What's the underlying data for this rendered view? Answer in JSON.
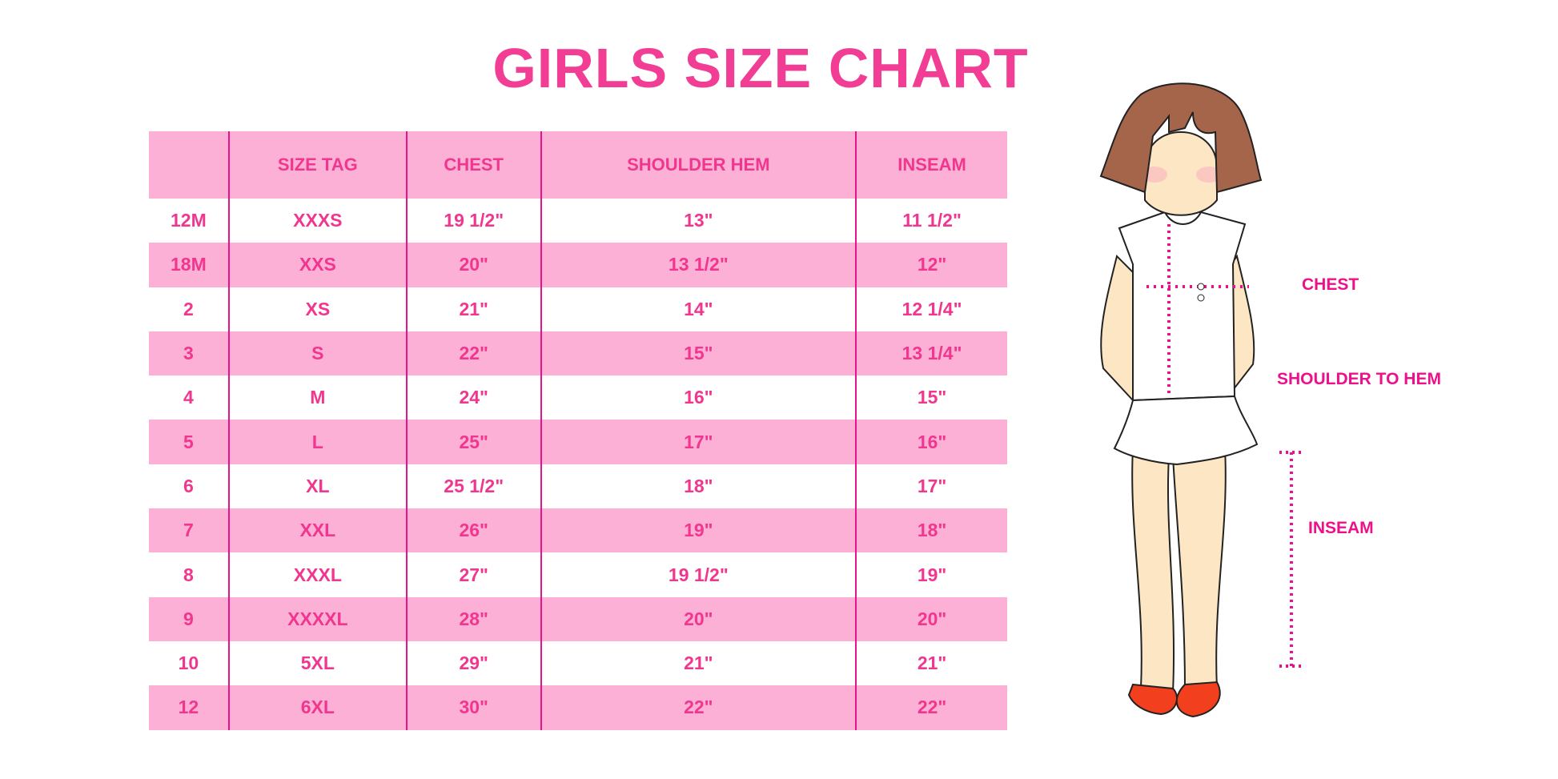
{
  "title": "GIRLS SIZE CHART",
  "table": {
    "headers": [
      "",
      "SIZE TAG",
      "CHEST",
      "SHOULDER HEM",
      "INSEAM"
    ],
    "rows": [
      [
        "12M",
        "XXXS",
        "19 1/2\"",
        "13\"",
        "11 1/2\""
      ],
      [
        "18M",
        "XXS",
        "20\"",
        "13 1/2\"",
        "12\""
      ],
      [
        "2",
        "XS",
        "21\"",
        "14\"",
        "12 1/4\""
      ],
      [
        "3",
        "S",
        "22\"",
        "15\"",
        "13 1/4\""
      ],
      [
        "4",
        "M",
        "24\"",
        "16\"",
        "15\""
      ],
      [
        "5",
        "L",
        "25\"",
        "17\"",
        "16\""
      ],
      [
        "6",
        "XL",
        "25 1/2\"",
        "18\"",
        "17\""
      ],
      [
        "7",
        "XXL",
        "26\"",
        "19\"",
        "18\""
      ],
      [
        "8",
        "XXXL",
        "27\"",
        "19 1/2\"",
        "19\""
      ],
      [
        "9",
        "XXXXL",
        "28\"",
        "20\"",
        "20\""
      ],
      [
        "10",
        "5XL",
        "29\"",
        "21\"",
        "21\""
      ],
      [
        "12",
        "6XL",
        "30\"",
        "22\"",
        "22\""
      ]
    ]
  },
  "figure": {
    "labels": {
      "chest": "CHEST",
      "shoulder_to_hem": "SHOULDER TO HEM",
      "inseam": "INSEAM"
    }
  },
  "colors": {
    "accent": "#f23d95",
    "row_pink": "#fdb0d5",
    "divider": "#e5148a",
    "hair": "#a5654a",
    "skin": "#fde6c4",
    "shoes": "#f2401f"
  }
}
